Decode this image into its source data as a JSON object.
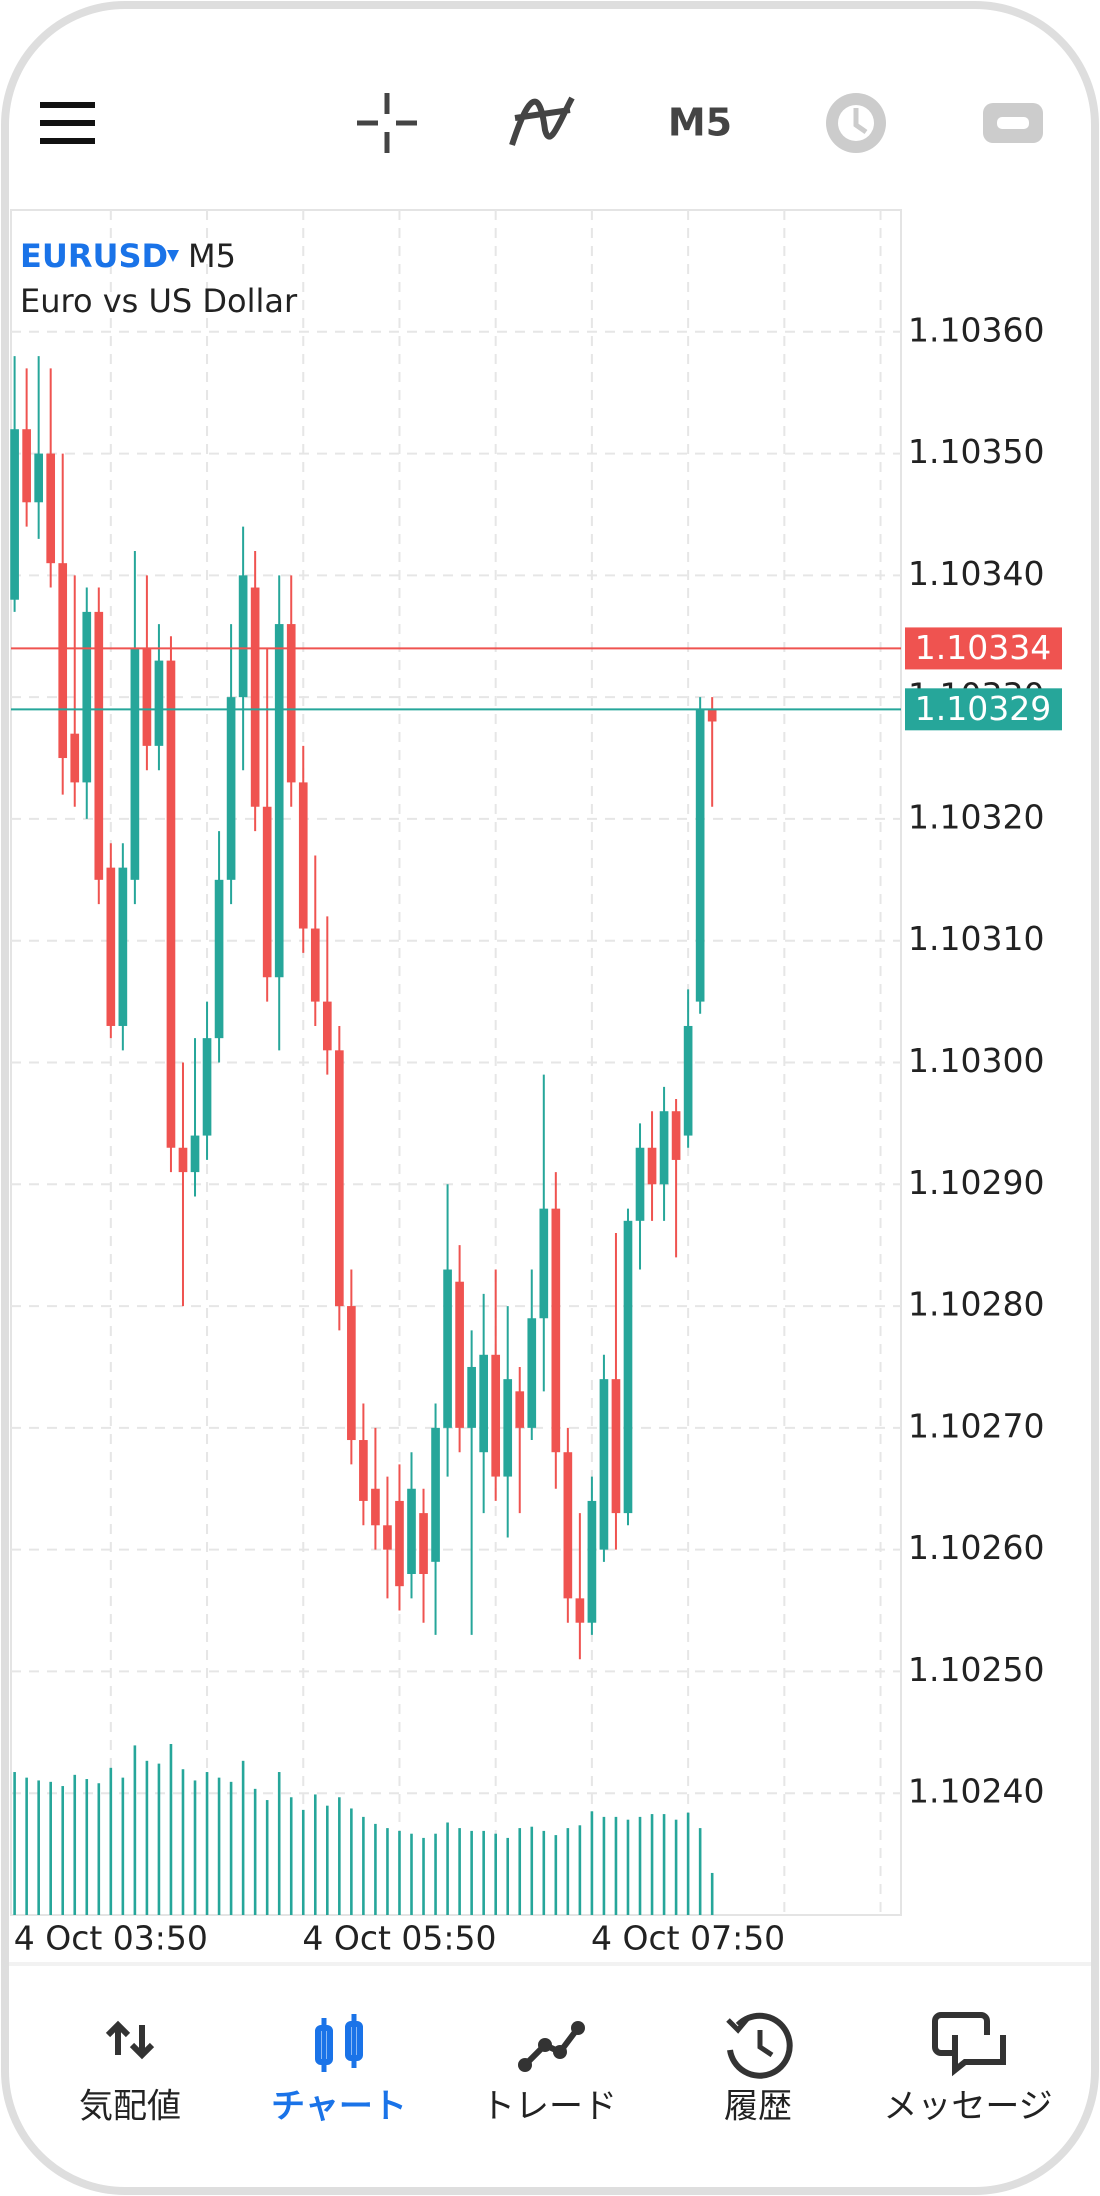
{
  "toolbar": {
    "timeframe": "M5"
  },
  "chart_data": {
    "type": "candlestick",
    "symbol": "EURUSD",
    "timeframe": "M5",
    "description": "Euro vs US Dollar",
    "up_color": "#26a69a",
    "down_color": "#ef5350",
    "volume_color": "#26a69a",
    "grid": true,
    "categories": [
      null,
      null,
      null,
      null,
      null,
      null,
      null,
      null,
      "4 Oct 03:50",
      null,
      null,
      null,
      null,
      null,
      null,
      null,
      null,
      null,
      null,
      null,
      null,
      null,
      null,
      null,
      null,
      null,
      null,
      null,
      null,
      null,
      null,
      null,
      "4 Oct 05:50",
      null,
      null,
      null,
      null,
      null,
      null,
      null,
      null,
      null,
      null,
      null,
      null,
      null,
      null,
      null,
      null,
      null,
      null,
      null,
      null,
      null,
      null,
      null,
      "4 Oct 07:50",
      null,
      null
    ],
    "open": [
      1.10338,
      1.10352,
      1.10346,
      1.1035,
      1.10341,
      1.10327,
      1.10323,
      1.10337,
      1.10316,
      1.10303,
      1.10315,
      1.10334,
      1.10326,
      1.10333,
      1.10293,
      1.10291,
      1.10294,
      1.10302,
      1.10315,
      1.1033,
      1.10339,
      1.10321,
      1.10307,
      1.10336,
      1.10323,
      1.10311,
      1.10305,
      1.10301,
      1.1028,
      1.10269,
      1.10265,
      1.10262,
      1.10264,
      1.10258,
      1.10263,
      1.10259,
      1.1027,
      1.10282,
      1.1027,
      1.10268,
      1.10276,
      1.10266,
      1.10273,
      1.1027,
      1.10279,
      1.10288,
      1.10268,
      1.10256,
      1.10254,
      1.1026,
      1.10274,
      1.10263,
      1.10287,
      1.10293,
      1.1029,
      1.10296,
      1.10294,
      1.10305,
      1.10329
    ],
    "high": [
      1.10358,
      1.10357,
      1.10358,
      1.10357,
      1.1035,
      1.1034,
      1.10339,
      1.10339,
      1.10318,
      1.10318,
      1.10342,
      1.1034,
      1.10336,
      1.10335,
      1.103,
      1.10302,
      1.10305,
      1.10319,
      1.10336,
      1.10344,
      1.10342,
      1.10334,
      1.1034,
      1.1034,
      1.10326,
      1.10317,
      1.10312,
      1.10303,
      1.10283,
      1.10272,
      1.1027,
      1.10266,
      1.10267,
      1.10268,
      1.10265,
      1.10272,
      1.1029,
      1.10285,
      1.10278,
      1.10281,
      1.10283,
      1.1028,
      1.10275,
      1.10283,
      1.10299,
      1.10291,
      1.1027,
      1.10263,
      1.10266,
      1.10276,
      1.10286,
      1.10288,
      1.10295,
      1.10296,
      1.10298,
      1.10297,
      1.10306,
      1.1033,
      1.1033
    ],
    "low": [
      1.10337,
      1.10344,
      1.10343,
      1.10339,
      1.10322,
      1.10321,
      1.1032,
      1.10313,
      1.10302,
      1.10301,
      1.10313,
      1.10324,
      1.10324,
      1.10291,
      1.1028,
      1.10289,
      1.10292,
      1.103,
      1.10313,
      1.10324,
      1.10319,
      1.10305,
      1.10301,
      1.10321,
      1.10309,
      1.10303,
      1.10299,
      1.10278,
      1.10267,
      1.10262,
      1.1026,
      1.10256,
      1.10255,
      1.10256,
      1.10254,
      1.10253,
      1.10266,
      1.10268,
      1.10253,
      1.10263,
      1.10264,
      1.10261,
      1.10263,
      1.10269,
      1.10273,
      1.10265,
      1.10254,
      1.10251,
      1.10253,
      1.10259,
      1.1026,
      1.10262,
      1.10283,
      1.10287,
      1.10287,
      1.10284,
      1.10293,
      1.10304,
      1.10321
    ],
    "close": [
      1.10352,
      1.10346,
      1.1035,
      1.10341,
      1.10325,
      1.10323,
      1.10337,
      1.10315,
      1.10303,
      1.10316,
      1.10334,
      1.10326,
      1.10333,
      1.10293,
      1.10291,
      1.10294,
      1.10302,
      1.10315,
      1.1033,
      1.1034,
      1.10321,
      1.10307,
      1.10336,
      1.10323,
      1.10311,
      1.10305,
      1.10301,
      1.1028,
      1.10269,
      1.10264,
      1.10262,
      1.1026,
      1.10257,
      1.10265,
      1.10258,
      1.1027,
      1.10283,
      1.1027,
      1.10275,
      1.10276,
      1.10266,
      1.10274,
      1.1027,
      1.10279,
      1.10288,
      1.10268,
      1.10256,
      1.10254,
      1.10264,
      1.10274,
      1.10263,
      1.10287,
      1.10293,
      1.1029,
      1.10296,
      1.10292,
      1.10303,
      1.10329,
      1.10328
    ],
    "volume": [
      102,
      98,
      96,
      95,
      92,
      100,
      97,
      94,
      105,
      98,
      121,
      110,
      108,
      122,
      104,
      96,
      102,
      98,
      95,
      110,
      90,
      82,
      102,
      84,
      75,
      86,
      78,
      84,
      76,
      70,
      65,
      62,
      60,
      58,
      55,
      58,
      66,
      62,
      60,
      60,
      58,
      55,
      62,
      63,
      60,
      57,
      62,
      64,
      74,
      70,
      70,
      68,
      70,
      72,
      72,
      68,
      73,
      62,
      30
    ],
    "ylim": [
      1.1023,
      1.1037
    ],
    "yticks": [
      {
        "value": 1.1036,
        "label": "1.10360"
      },
      {
        "value": 1.1035,
        "label": "1.10350"
      },
      {
        "value": 1.1034,
        "label": "1.10340"
      },
      {
        "value": 1.1033,
        "label": "1.10330"
      },
      {
        "value": 1.1032,
        "label": "1.10320"
      },
      {
        "value": 1.1031,
        "label": "1.10310"
      },
      {
        "value": 1.103,
        "label": "1.10300"
      },
      {
        "value": 1.1029,
        "label": "1.10290"
      },
      {
        "value": 1.1028,
        "label": "1.10280"
      },
      {
        "value": 1.1027,
        "label": "1.10270"
      },
      {
        "value": 1.1026,
        "label": "1.10260"
      },
      {
        "value": 1.1025,
        "label": "1.10250"
      },
      {
        "value": 1.1024,
        "label": "1.10240"
      }
    ],
    "ask": 1.10334,
    "bid": 1.10329
  },
  "nav": [
    "気配値",
    "チャート",
    "トレード",
    "履歴",
    "メッセージ"
  ]
}
